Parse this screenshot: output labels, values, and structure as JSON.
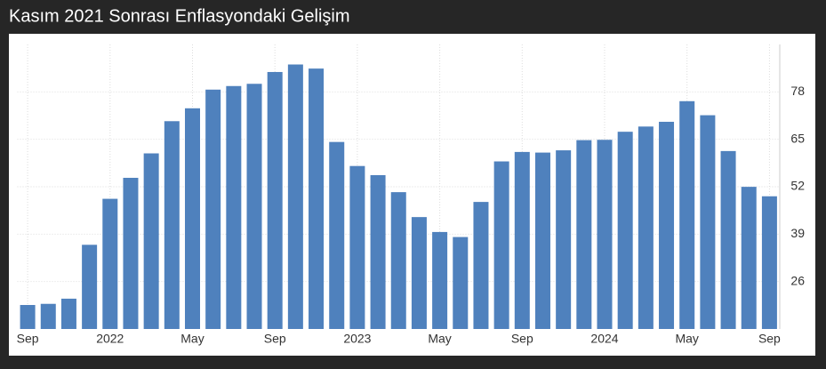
{
  "chart_data": {
    "type": "bar",
    "title": "Kasım 2021 Sonrası Enflasyondaki Gelişim",
    "categories": [
      "Sep",
      null,
      null,
      null,
      "2022",
      null,
      null,
      null,
      "May",
      null,
      null,
      null,
      "Sep",
      null,
      null,
      null,
      "2023",
      null,
      null,
      null,
      "May",
      null,
      null,
      null,
      "Sep",
      null,
      null,
      null,
      "2024",
      null,
      null,
      null,
      "May",
      null,
      null,
      null,
      "Sep"
    ],
    "values": [
      19.58,
      19.89,
      21.31,
      36.08,
      48.69,
      54.44,
      61.14,
      69.97,
      73.5,
      78.62,
      79.6,
      80.21,
      83.45,
      85.51,
      84.39,
      64.27,
      57.68,
      55.18,
      50.51,
      43.68,
      39.59,
      38.21,
      47.83,
      58.94,
      61.53,
      61.36,
      61.98,
      64.77,
      64.86,
      67.07,
      68.5,
      69.8,
      75.45,
      71.6,
      61.78,
      51.97,
      49.38
    ],
    "color": "#4f81bd",
    "ylim": [
      13,
      91
    ],
    "yticks": [
      26,
      39,
      52,
      65,
      78
    ],
    "grid": true
  }
}
